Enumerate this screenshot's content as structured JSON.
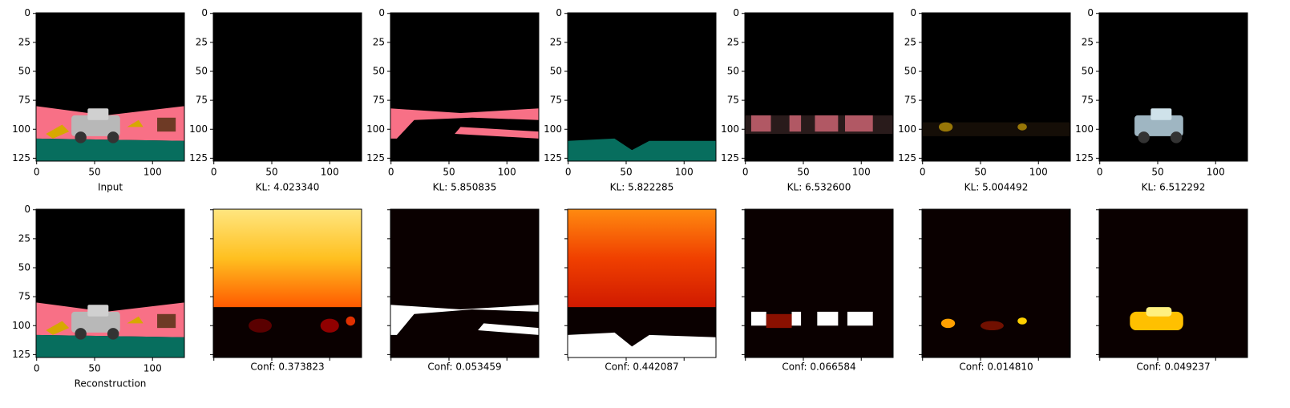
{
  "top_row": {
    "captions": [
      "Input",
      "KL: 4.023340",
      "KL: 5.850835",
      "KL: 5.822285",
      "KL: 6.532600",
      "KL: 5.004492",
      "KL: 6.512292"
    ]
  },
  "bottom_row": {
    "captions": [
      "Reconstruction",
      "Conf: 0.373823",
      "Conf: 0.053459",
      "Conf: 0.442087",
      "Conf: 0.066584",
      "Conf: 0.014810",
      "Conf: 0.049237"
    ]
  },
  "axes": {
    "xlim": [
      -0.5,
      127.5
    ],
    "ylim": [
      127.5,
      -0.5
    ],
    "xticks": [
      0,
      50,
      100
    ],
    "yticks": [
      0,
      25,
      50,
      75,
      100,
      125
    ]
  }
}
